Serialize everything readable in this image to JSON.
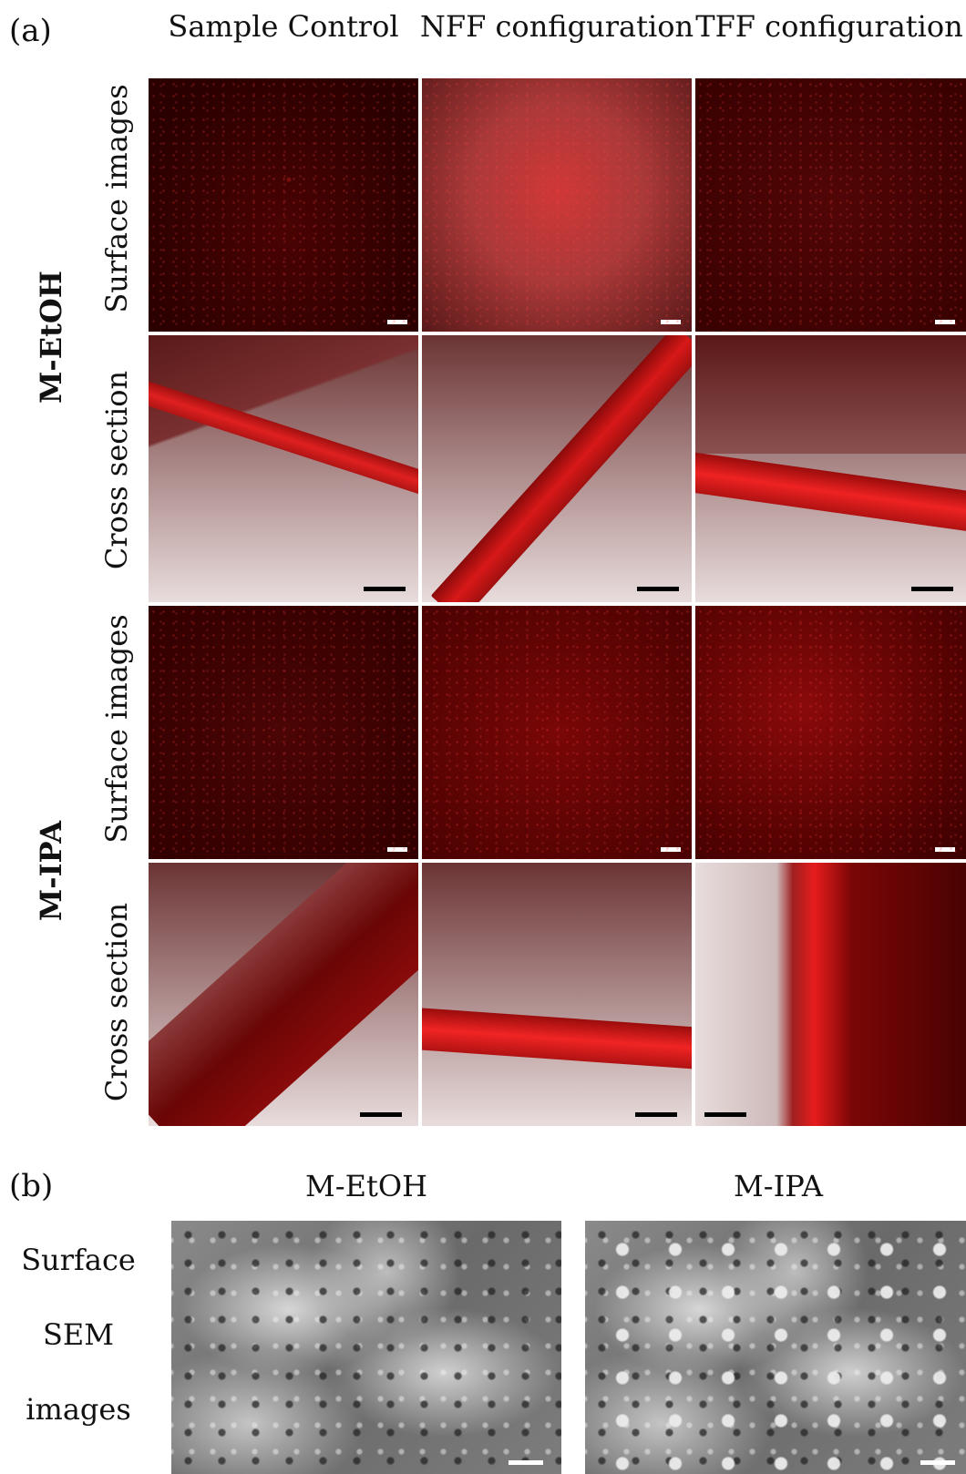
{
  "panel_a": {
    "label": "(a)",
    "columns": [
      "Sample Control",
      "NFF configuration",
      "TFF configuration"
    ],
    "groups": [
      {
        "name": "M-EtOH",
        "rows": [
          "Surface images",
          "Cross section"
        ]
      },
      {
        "name": "M-IPA",
        "rows": [
          "Surface images",
          "Cross section"
        ]
      }
    ]
  },
  "panel_b": {
    "label": "(b)",
    "columns": [
      "M-EtOH",
      "M-IPA"
    ],
    "side_label": [
      "Surface",
      "SEM",
      "images"
    ]
  },
  "colors": {
    "fluorescence": "#d01010",
    "background": "#ffffff",
    "sem": "#8a8a8a"
  }
}
